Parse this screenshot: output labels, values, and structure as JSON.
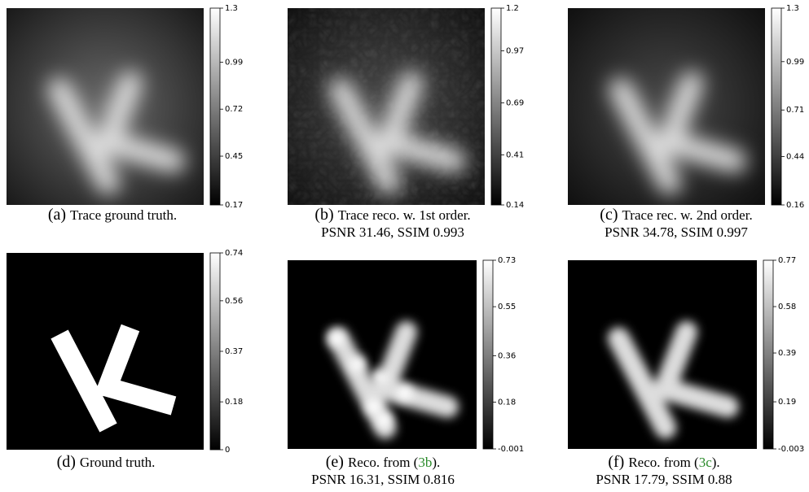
{
  "panels": [
    {
      "label": "(a)",
      "caption": "Trace ground truth.",
      "colorbar": {
        "ticks": [
          1.3,
          0.99,
          0.72,
          0.45,
          0.17
        ]
      }
    },
    {
      "label": "(b)",
      "caption": "Trace reco. w. 1st order.",
      "metrics": "PSNR 31.46, SSIM 0.993",
      "colorbar": {
        "ticks": [
          1.2,
          0.97,
          0.69,
          0.41,
          0.14
        ]
      }
    },
    {
      "label": "(c)",
      "caption": "Trace rec. w. 2nd order.",
      "metrics": "PSNR 34.78, SSIM 0.997",
      "colorbar": {
        "ticks": [
          1.3,
          0.99,
          0.71,
          0.44,
          0.16
        ]
      }
    },
    {
      "label": "(d)",
      "caption": "Ground truth.",
      "colorbar": {
        "ticks": [
          0.74,
          0.56,
          0.37,
          0.18,
          0
        ]
      }
    },
    {
      "label": "(e)",
      "caption": "Reco. from (",
      "ref": "3b",
      "caption_end": ").",
      "metrics": "PSNR 16.31, SSIM 0.816",
      "colorbar": {
        "ticks": [
          0.73,
          0.55,
          0.36,
          0.18,
          -0.001
        ]
      }
    },
    {
      "label": "(f)",
      "caption": "Reco. from (",
      "ref": "3c",
      "caption_end": ").",
      "metrics": "PSNR 17.79, SSIM 0.88",
      "colorbar": {
        "ticks": [
          0.77,
          0.58,
          0.39,
          0.19,
          -0.003
        ]
      }
    }
  ]
}
